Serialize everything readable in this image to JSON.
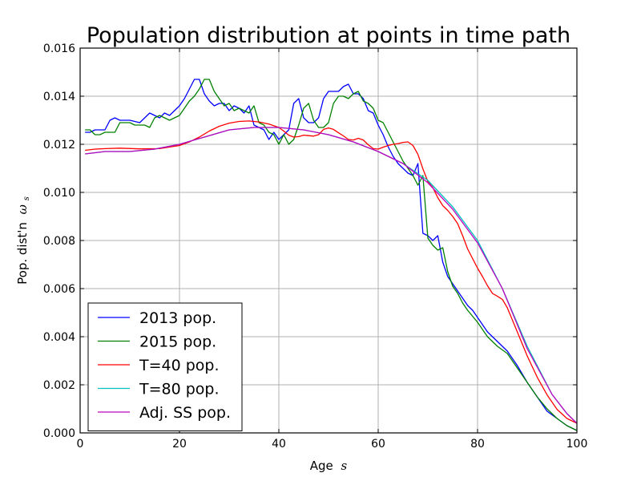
{
  "chart_data": {
    "type": "line",
    "title": "Population distribution at points in time path",
    "xlabel": "Age",
    "xlabel_var": "s",
    "ylabel": "Pop. dist'n",
    "ylabel_var": "ω",
    "ylabel_sub": "s",
    "xlim": [
      0,
      100
    ],
    "ylim": [
      0,
      0.016
    ],
    "xticks": [
      0,
      20,
      40,
      60,
      80,
      100
    ],
    "xtick_labels": [
      "0",
      "20",
      "40",
      "60",
      "80",
      "100"
    ],
    "yticks": [
      0,
      0.002,
      0.004,
      0.006,
      0.008,
      0.01,
      0.012,
      0.014,
      0.016
    ],
    "ytick_labels": [
      "0.000",
      "0.002",
      "0.004",
      "0.006",
      "0.008",
      "0.010",
      "0.012",
      "0.014",
      "0.016"
    ],
    "grid": true,
    "legend_position": "bottom-left",
    "series": [
      {
        "name": "2013 pop.",
        "color": "#0000ff",
        "points": [
          [
            1,
            0.0125
          ],
          [
            2,
            0.0125
          ],
          [
            3,
            0.0126
          ],
          [
            5,
            0.0126
          ],
          [
            6,
            0.013
          ],
          [
            7,
            0.0131
          ],
          [
            8,
            0.013
          ],
          [
            10,
            0.013
          ],
          [
            12,
            0.0129
          ],
          [
            13,
            0.0131
          ],
          [
            14,
            0.0133
          ],
          [
            15,
            0.0132
          ],
          [
            16,
            0.0131
          ],
          [
            17,
            0.0133
          ],
          [
            18,
            0.0132
          ],
          [
            19,
            0.0134
          ],
          [
            20,
            0.0136
          ],
          [
            21,
            0.0139
          ],
          [
            22,
            0.0143
          ],
          [
            23,
            0.0147
          ],
          [
            24,
            0.0147
          ],
          [
            25,
            0.0141
          ],
          [
            26,
            0.0138
          ],
          [
            27,
            0.0136
          ],
          [
            28,
            0.0137
          ],
          [
            29,
            0.0137
          ],
          [
            30,
            0.0134
          ],
          [
            31,
            0.0136
          ],
          [
            32,
            0.0135
          ],
          [
            33,
            0.0133
          ],
          [
            34,
            0.0136
          ],
          [
            35,
            0.0128
          ],
          [
            36,
            0.0127
          ],
          [
            37,
            0.0126
          ],
          [
            38,
            0.0122
          ],
          [
            39,
            0.0125
          ],
          [
            40,
            0.0122
          ],
          [
            41,
            0.0124
          ],
          [
            42,
            0.0126
          ],
          [
            43,
            0.0137
          ],
          [
            44,
            0.0139
          ],
          [
            45,
            0.0131
          ],
          [
            46,
            0.0129
          ],
          [
            47,
            0.0129
          ],
          [
            48,
            0.0131
          ],
          [
            49,
            0.0139
          ],
          [
            50,
            0.0142
          ],
          [
            51,
            0.0142
          ],
          [
            52,
            0.0142
          ],
          [
            53,
            0.0144
          ],
          [
            54,
            0.0145
          ],
          [
            55,
            0.0141
          ],
          [
            56,
            0.0141
          ],
          [
            57,
            0.0139
          ],
          [
            58,
            0.0134
          ],
          [
            59,
            0.0133
          ],
          [
            60,
            0.0128
          ],
          [
            61,
            0.0124
          ],
          [
            62,
            0.0119
          ],
          [
            63,
            0.0115
          ],
          [
            64,
            0.0112
          ],
          [
            65,
            0.011
          ],
          [
            66,
            0.0108
          ],
          [
            67,
            0.0107
          ],
          [
            68,
            0.0112
          ],
          [
            69,
            0.0083
          ],
          [
            70,
            0.0082
          ],
          [
            71,
            0.008
          ],
          [
            72,
            0.0082
          ],
          [
            73,
            0.0071
          ],
          [
            74,
            0.0065
          ],
          [
            75,
            0.0062
          ],
          [
            76,
            0.0059
          ],
          [
            77,
            0.0056
          ],
          [
            78,
            0.0053
          ],
          [
            79,
            0.0051
          ],
          [
            80,
            0.0048
          ],
          [
            82,
            0.0042
          ],
          [
            84,
            0.0038
          ],
          [
            86,
            0.0034
          ],
          [
            88,
            0.0028
          ],
          [
            90,
            0.0021
          ],
          [
            92,
            0.0015
          ],
          [
            94,
            0.0009
          ],
          [
            96,
            0.0006
          ],
          [
            98,
            0.0003
          ],
          [
            100,
            0.0001
          ]
        ]
      },
      {
        "name": "2015 pop.",
        "color": "#008000",
        "points": [
          [
            1,
            0.0126
          ],
          [
            2,
            0.0126
          ],
          [
            3,
            0.0124
          ],
          [
            4,
            0.0124
          ],
          [
            5,
            0.0125
          ],
          [
            6,
            0.0125
          ],
          [
            7,
            0.0125
          ],
          [
            8,
            0.0129
          ],
          [
            9,
            0.0129
          ],
          [
            10,
            0.0129
          ],
          [
            11,
            0.0128
          ],
          [
            12,
            0.0128
          ],
          [
            13,
            0.0128
          ],
          [
            14,
            0.0127
          ],
          [
            15,
            0.0131
          ],
          [
            16,
            0.0132
          ],
          [
            17,
            0.0131
          ],
          [
            18,
            0.013
          ],
          [
            19,
            0.0131
          ],
          [
            20,
            0.0132
          ],
          [
            21,
            0.0135
          ],
          [
            22,
            0.0138
          ],
          [
            23,
            0.014
          ],
          [
            24,
            0.0143
          ],
          [
            25,
            0.0147
          ],
          [
            26,
            0.0147
          ],
          [
            27,
            0.0142
          ],
          [
            28,
            0.0139
          ],
          [
            29,
            0.0136
          ],
          [
            30,
            0.0137
          ],
          [
            31,
            0.0134
          ],
          [
            32,
            0.0135
          ],
          [
            33,
            0.0134
          ],
          [
            34,
            0.0133
          ],
          [
            35,
            0.0136
          ],
          [
            36,
            0.0129
          ],
          [
            37,
            0.0128
          ],
          [
            38,
            0.0125
          ],
          [
            39,
            0.0124
          ],
          [
            40,
            0.012
          ],
          [
            41,
            0.0124
          ],
          [
            42,
            0.012
          ],
          [
            43,
            0.0122
          ],
          [
            44,
            0.0128
          ],
          [
            45,
            0.0135
          ],
          [
            46,
            0.0137
          ],
          [
            47,
            0.013
          ],
          [
            48,
            0.0127
          ],
          [
            49,
            0.0127
          ],
          [
            50,
            0.0129
          ],
          [
            51,
            0.0137
          ],
          [
            52,
            0.014
          ],
          [
            53,
            0.014
          ],
          [
            54,
            0.0139
          ],
          [
            55,
            0.0141
          ],
          [
            56,
            0.0142
          ],
          [
            57,
            0.0138
          ],
          [
            58,
            0.0137
          ],
          [
            59,
            0.0135
          ],
          [
            60,
            0.013
          ],
          [
            61,
            0.0129
          ],
          [
            62,
            0.0125
          ],
          [
            63,
            0.0121
          ],
          [
            64,
            0.0117
          ],
          [
            65,
            0.0113
          ],
          [
            66,
            0.011
          ],
          [
            67,
            0.0107
          ],
          [
            68,
            0.0103
          ],
          [
            69,
            0.0107
          ],
          [
            70,
            0.0081
          ],
          [
            71,
            0.0078
          ],
          [
            72,
            0.0076
          ],
          [
            73,
            0.0077
          ],
          [
            74,
            0.0067
          ],
          [
            75,
            0.0061
          ],
          [
            76,
            0.0058
          ],
          [
            77,
            0.0054
          ],
          [
            78,
            0.0051
          ],
          [
            80,
            0.0046
          ],
          [
            82,
            0.004
          ],
          [
            84,
            0.0036
          ],
          [
            86,
            0.0033
          ],
          [
            88,
            0.0027
          ],
          [
            90,
            0.0021
          ],
          [
            92,
            0.0015
          ],
          [
            94,
            0.001
          ],
          [
            96,
            0.0006
          ],
          [
            98,
            0.0003
          ],
          [
            100,
            0.0001
          ]
        ]
      },
      {
        "name": "T=40 pop.",
        "color": "#ff0000",
        "points": [
          [
            1,
            0.01175
          ],
          [
            3,
            0.0118
          ],
          [
            5,
            0.01182
          ],
          [
            8,
            0.01184
          ],
          [
            12,
            0.01181
          ],
          [
            16,
            0.01182
          ],
          [
            20,
            0.01195
          ],
          [
            22,
            0.0121
          ],
          [
            24,
            0.0123
          ],
          [
            26,
            0.01255
          ],
          [
            28,
            0.01275
          ],
          [
            30,
            0.01288
          ],
          [
            32,
            0.01295
          ],
          [
            34,
            0.01297
          ],
          [
            36,
            0.01293
          ],
          [
            38,
            0.01284
          ],
          [
            40,
            0.0127
          ],
          [
            41,
            0.01255
          ],
          [
            42,
            0.01238
          ],
          [
            43,
            0.0123
          ],
          [
            44,
            0.01232
          ],
          [
            45,
            0.01238
          ],
          [
            46,
            0.01236
          ],
          [
            47,
            0.01234
          ],
          [
            48,
            0.0124
          ],
          [
            49,
            0.01262
          ],
          [
            50,
            0.01268
          ],
          [
            51,
            0.01262
          ],
          [
            52,
            0.01248
          ],
          [
            53,
            0.01235
          ],
          [
            54,
            0.0122
          ],
          [
            55,
            0.01218
          ],
          [
            56,
            0.01225
          ],
          [
            57,
            0.01218
          ],
          [
            58,
            0.01198
          ],
          [
            59,
            0.01182
          ],
          [
            60,
            0.0118
          ],
          [
            61,
            0.01188
          ],
          [
            62,
            0.01195
          ],
          [
            63,
            0.012
          ],
          [
            64,
            0.01203
          ],
          [
            65,
            0.01208
          ],
          [
            66,
            0.0121
          ],
          [
            67,
            0.01195
          ],
          [
            68,
            0.01158
          ],
          [
            69,
            0.01098
          ],
          [
            70,
            0.01045
          ],
          [
            71,
            0.0102
          ],
          [
            72,
            0.00978
          ],
          [
            73,
            0.00945
          ],
          [
            74,
            0.00925
          ],
          [
            75,
            0.009
          ],
          [
            76,
            0.0087
          ],
          [
            77,
            0.0082
          ],
          [
            78,
            0.00765
          ],
          [
            79,
            0.00725
          ],
          [
            80,
            0.00685
          ],
          [
            81,
            0.0065
          ],
          [
            82,
            0.00612
          ],
          [
            83,
            0.0058
          ],
          [
            84,
            0.00568
          ],
          [
            85,
            0.00555
          ],
          [
            86,
            0.0052
          ],
          [
            88,
            0.0042
          ],
          [
            90,
            0.0032
          ],
          [
            92,
            0.00232
          ],
          [
            94,
            0.00158
          ],
          [
            96,
            0.00098
          ],
          [
            98,
            0.0006
          ],
          [
            100,
            0.0004
          ]
        ]
      },
      {
        "name": "T=80 pop.",
        "color": "#00bfbf",
        "points": [
          [
            1,
            0.0116
          ],
          [
            5,
            0.0117
          ],
          [
            10,
            0.0117
          ],
          [
            15,
            0.0118
          ],
          [
            20,
            0.012
          ],
          [
            25,
            0.0123
          ],
          [
            30,
            0.0126
          ],
          [
            35,
            0.0127
          ],
          [
            40,
            0.0127
          ],
          [
            45,
            0.0126
          ],
          [
            50,
            0.0124
          ],
          [
            55,
            0.0121
          ],
          [
            60,
            0.0117
          ],
          [
            65,
            0.0112
          ],
          [
            70,
            0.0105
          ],
          [
            75,
            0.0094
          ],
          [
            80,
            0.008
          ],
          [
            85,
            0.006
          ],
          [
            90,
            0.0036
          ],
          [
            95,
            0.0016
          ],
          [
            98,
            0.0008
          ],
          [
            100,
            0.0004
          ]
        ]
      },
      {
        "name": "Adj. SS pop.",
        "color": "#bf00bf",
        "points": [
          [
            1,
            0.0116
          ],
          [
            5,
            0.0117
          ],
          [
            10,
            0.0117
          ],
          [
            15,
            0.0118
          ],
          [
            20,
            0.012
          ],
          [
            25,
            0.0123
          ],
          [
            30,
            0.0126
          ],
          [
            35,
            0.0127
          ],
          [
            40,
            0.0127
          ],
          [
            45,
            0.0126
          ],
          [
            50,
            0.0124
          ],
          [
            55,
            0.0121
          ],
          [
            60,
            0.0117
          ],
          [
            65,
            0.0112
          ],
          [
            70,
            0.0104
          ],
          [
            75,
            0.0093
          ],
          [
            80,
            0.0079
          ],
          [
            85,
            0.006
          ],
          [
            90,
            0.0035
          ],
          [
            95,
            0.0016
          ],
          [
            98,
            0.0008
          ],
          [
            100,
            0.0004
          ]
        ]
      }
    ]
  }
}
